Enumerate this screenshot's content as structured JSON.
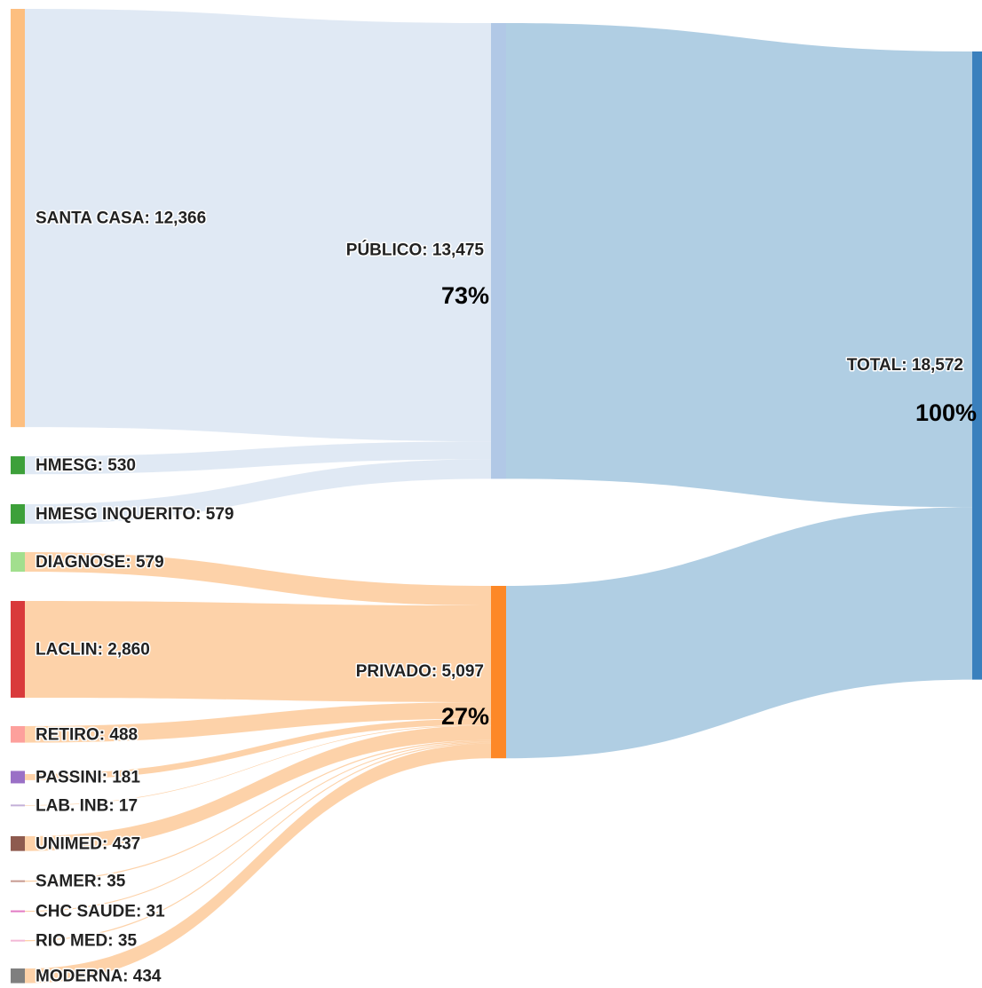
{
  "chart_data": {
    "type": "sankey",
    "total": {
      "label": "TOTAL: 18,572",
      "value": 18572,
      "color": "#3a80bd",
      "percent": 100,
      "percent_label": "100%",
      "link_color": "#a7c9e0"
    },
    "groups": [
      {
        "label": "PÚBLICO: 13,475",
        "value": 13475,
        "color": "#b1c8e6",
        "percent": 73,
        "percent_label": "73%",
        "link_color": "#dde7f3",
        "sources": [
          {
            "label": "SANTA CASA: 12,366",
            "value": 12366,
            "color": "#fdbf80"
          },
          {
            "label": "HMESG: 530",
            "value": 530,
            "color": "#3da03a"
          },
          {
            "label": "HMESG INQUERITO: 579",
            "value": 579,
            "color": "#3da03a"
          }
        ]
      },
      {
        "label": "PRIVADO: 5,097",
        "value": 5097,
        "color": "#fd8827",
        "percent": 27,
        "percent_label": "27%",
        "link_color": "#fdcda0",
        "sources": [
          {
            "label": "DIAGNOSE: 579",
            "value": 579,
            "color": "#a2df8e"
          },
          {
            "label": "LACLIN: 2,860",
            "value": 2860,
            "color": "#d93a3b"
          },
          {
            "label": "RETIRO: 488",
            "value": 488,
            "color": "#fda09c"
          },
          {
            "label": "PASSINI: 181",
            "value": 181,
            "color": "#9a70c6"
          },
          {
            "label": "LAB. INB: 17",
            "value": 17,
            "color": "#c4b0d8"
          },
          {
            "label": "UNIMED: 437",
            "value": 437,
            "color": "#8e5b4f"
          },
          {
            "label": "SAMER: 35",
            "value": 35,
            "color": "#c79a90"
          },
          {
            "label": "CHC SAUDE: 31",
            "value": 31,
            "color": "#e27ac4"
          },
          {
            "label": "RIO MED: 35",
            "value": 35,
            "color": "#f3b8d6"
          },
          {
            "label": "MODERNA: 434",
            "value": 434,
            "color": "#7f7f7f"
          }
        ]
      }
    ]
  }
}
